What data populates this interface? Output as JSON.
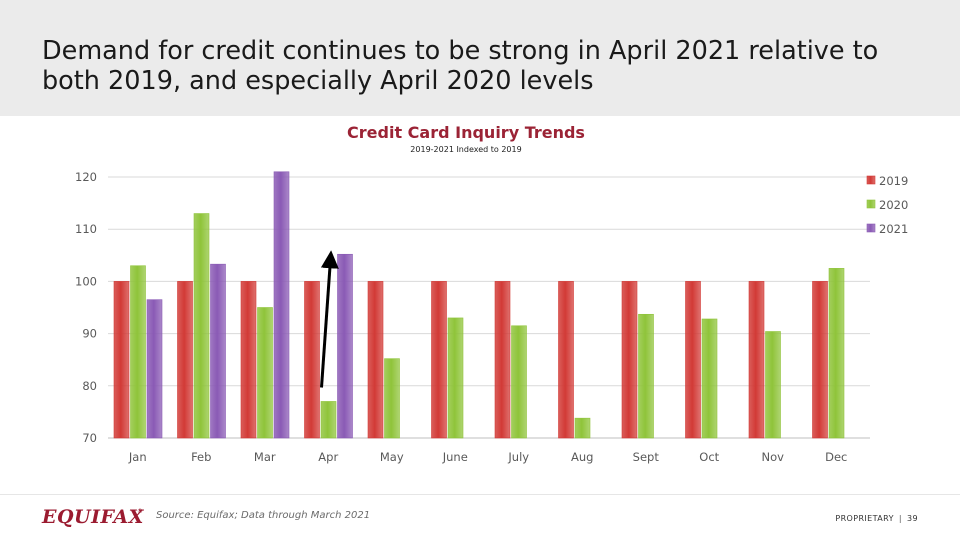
{
  "slide": {
    "title": "Demand for credit continues to be strong in April 2021 relative to both 2019, and especially April 2020 levels"
  },
  "footer": {
    "logo": "EQUIFAX",
    "logo_mark": "®",
    "source": "Source: Equifax; Data through March 2021",
    "proprietary": "PROPRIETARY",
    "separator": "|",
    "page_number": "39"
  },
  "colors": {
    "2019": "#d23a36",
    "2020": "#8fc43a",
    "2021": "#8a5ab5",
    "arrow": "#000000",
    "title_accent": "#9b2335"
  },
  "chart_data": {
    "type": "bar",
    "title": "Credit Card Inquiry Trends",
    "subtitle": "2019-2021 Indexed to 2019",
    "xlabel": "",
    "ylabel": "",
    "ylim": [
      70,
      120
    ],
    "yticks": [
      70,
      80,
      90,
      100,
      110,
      120
    ],
    "grid": true,
    "legend_position": "right",
    "categories": [
      "Jan",
      "Feb",
      "Mar",
      "Apr",
      "May",
      "June",
      "July",
      "Aug",
      "Sept",
      "Oct",
      "Nov",
      "Dec"
    ],
    "series": [
      {
        "name": "2019",
        "values": [
          100,
          100,
          100,
          100,
          100,
          100,
          100,
          100,
          100,
          100,
          100,
          100
        ]
      },
      {
        "name": "2020",
        "values": [
          103,
          113,
          95,
          77,
          85.2,
          93,
          91.5,
          73.8,
          93.7,
          92.8,
          90.4,
          102.5
        ]
      },
      {
        "name": "2021",
        "values": [
          96.5,
          103.3,
          121,
          105.2,
          null,
          null,
          null,
          null,
          null,
          null,
          null,
          null
        ]
      }
    ],
    "annotation": {
      "type": "arrow",
      "category": "Apr",
      "from_series": "2020",
      "to_series": "2021"
    }
  }
}
